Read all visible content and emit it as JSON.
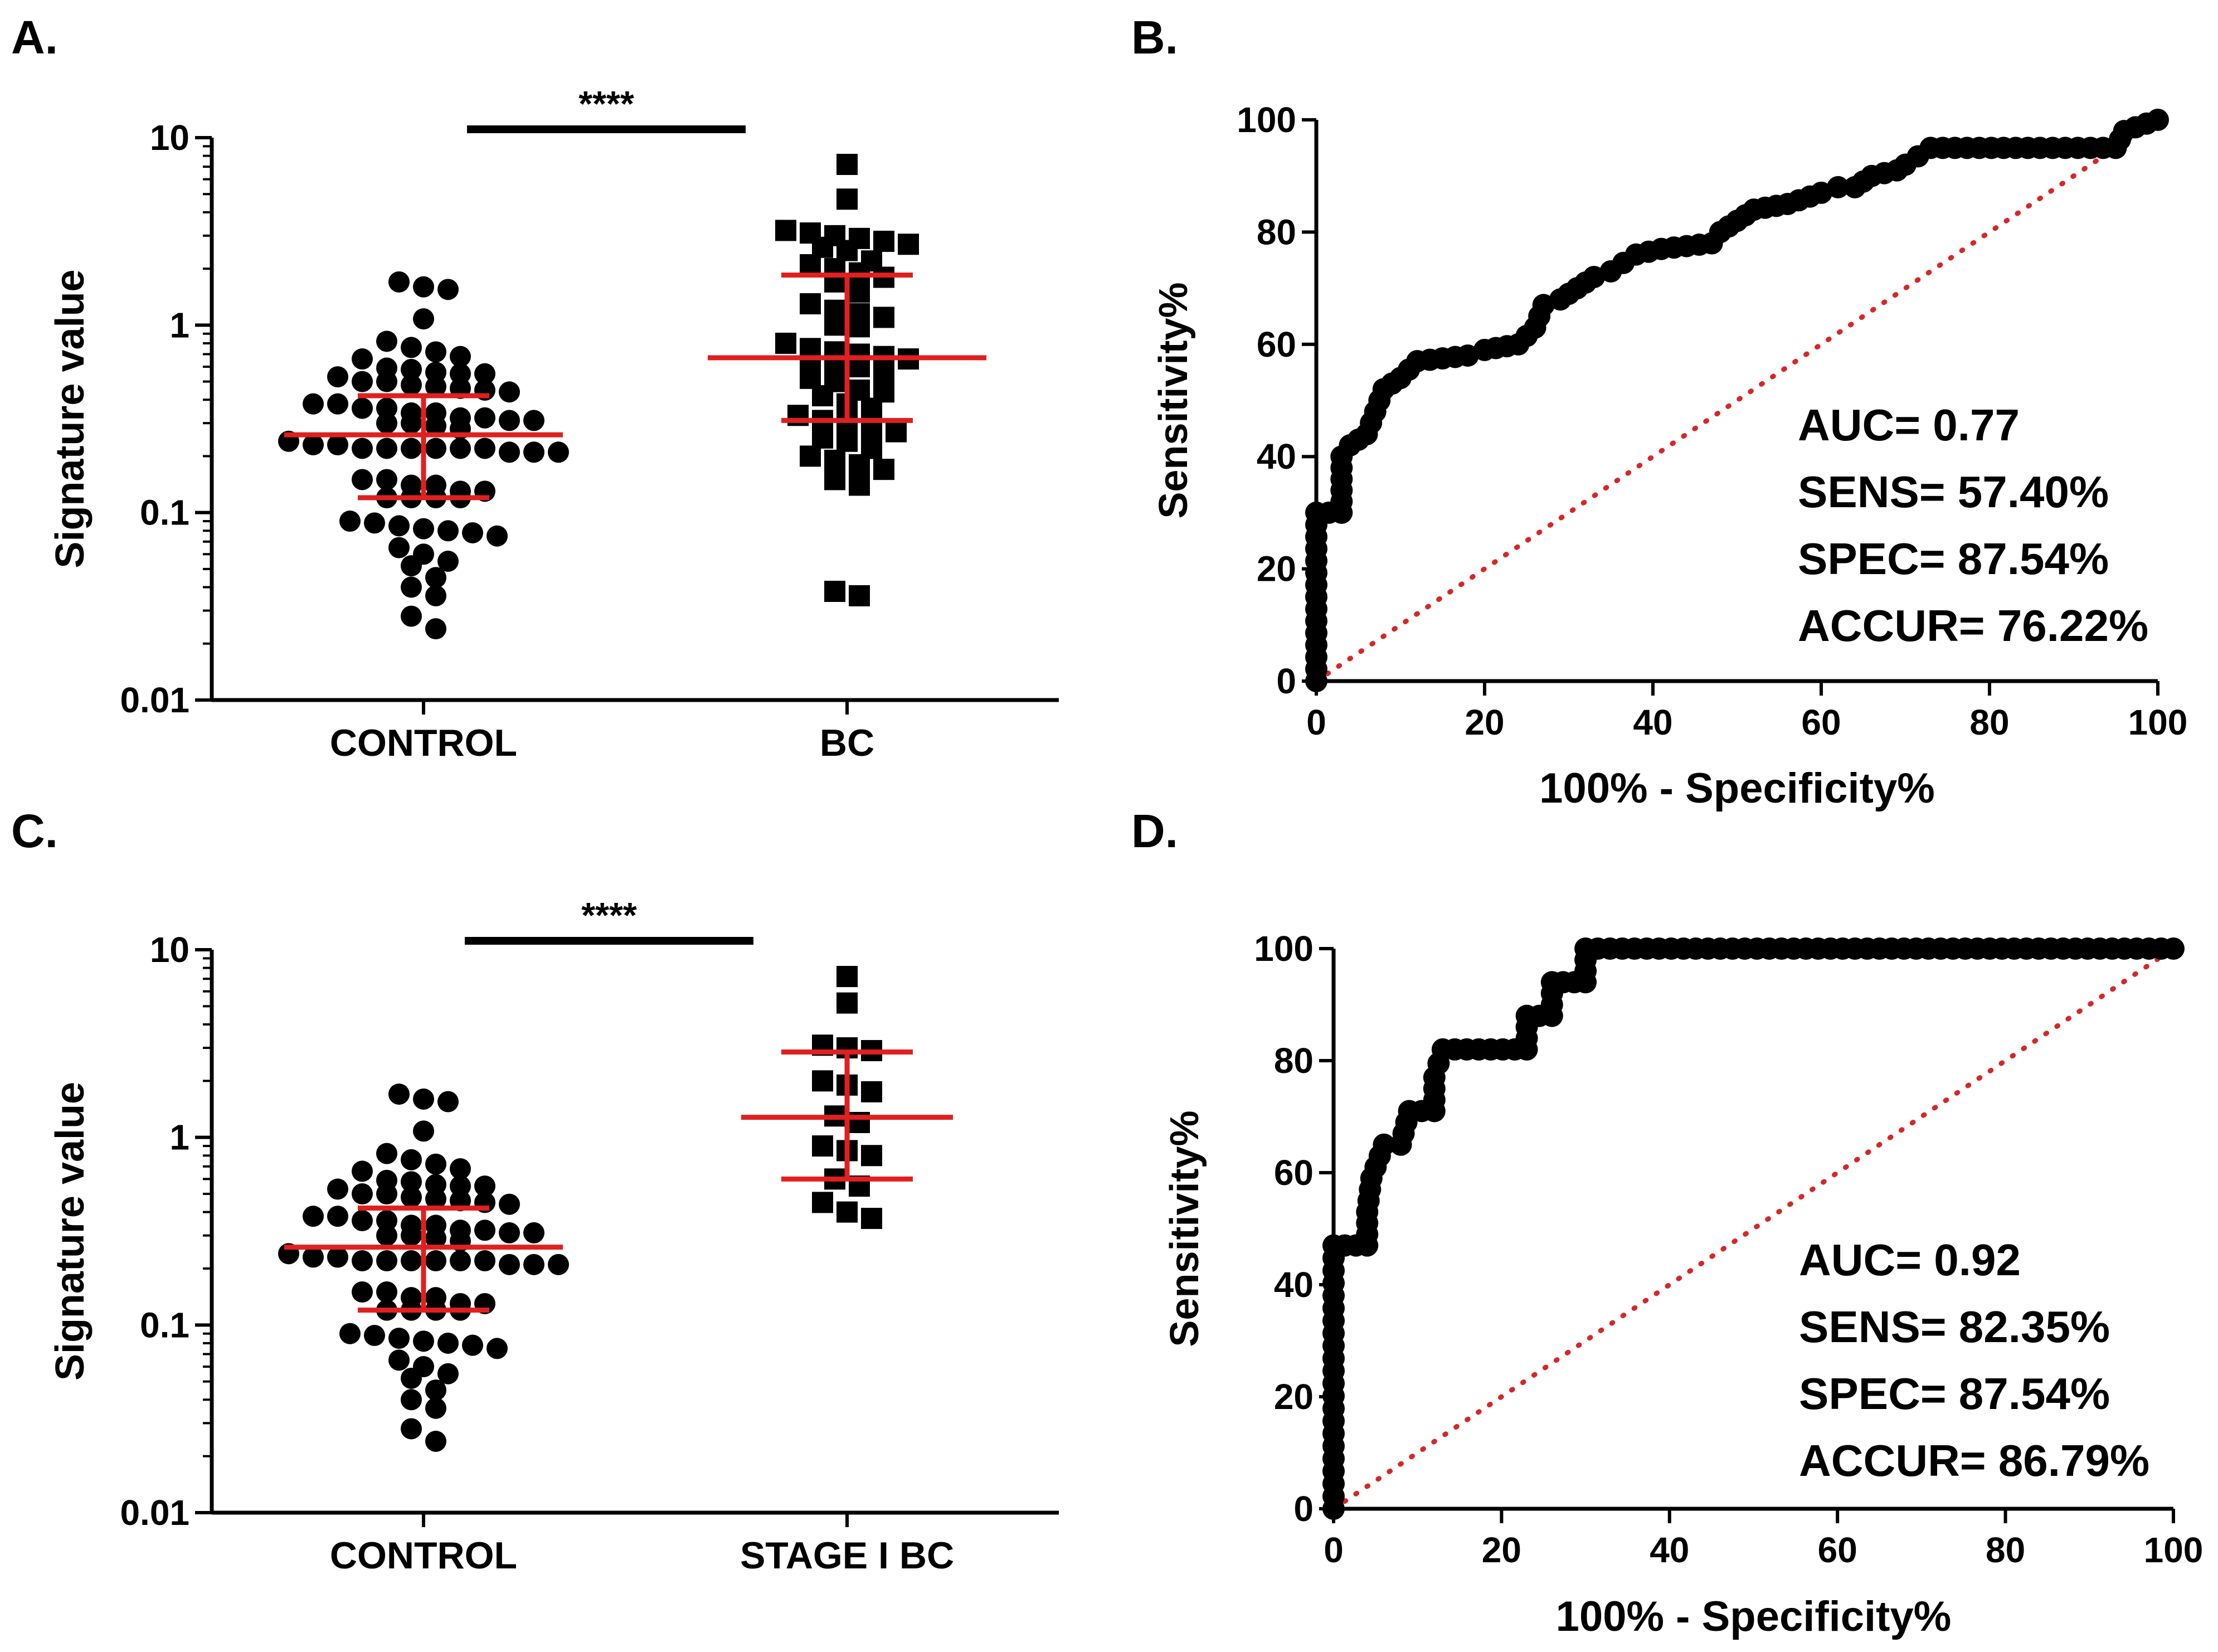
{
  "chart_data": [
    {
      "panel": "A.",
      "type": "scatter",
      "subtype": "dot-plot-log",
      "ylabel": "Signature value",
      "yscale": "log",
      "ylim": [
        0.01,
        10
      ],
      "yticks": [
        "0.01",
        "0.1",
        "1",
        "10"
      ],
      "categories": [
        "CONTROL",
        "BC"
      ],
      "significance": "****",
      "color_summary": "#e02020",
      "groups": [
        {
          "name": "CONTROL",
          "marker": "circle",
          "median": 0.26,
          "q1": 0.12,
          "q3": 0.42,
          "values": [
            1.7,
            1.6,
            1.08,
            1.55,
            0.82,
            0.72,
            0.68,
            0.66,
            0.76,
            0.58,
            0.55,
            0.5,
            0.47,
            0.45,
            0.44,
            0.46,
            0.48,
            0.5,
            0.53,
            0.56,
            0.59,
            0.55,
            0.38,
            0.36,
            0.34,
            0.32,
            0.31,
            0.3,
            0.29,
            0.28,
            0.3,
            0.31,
            0.32,
            0.34,
            0.36,
            0.38,
            0.24,
            0.23,
            0.22,
            0.22,
            0.21,
            0.21,
            0.21,
            0.22,
            0.22,
            0.23,
            0.22,
            0.22,
            0.15,
            0.14,
            0.13,
            0.12,
            0.12,
            0.12,
            0.12,
            0.13,
            0.14,
            0.15,
            0.09,
            0.085,
            0.08,
            0.075,
            0.078,
            0.082,
            0.088,
            0.06,
            0.055,
            0.065,
            0.052,
            0.045,
            0.036,
            0.04,
            0.028,
            0.024
          ]
        },
        {
          "name": "BC",
          "marker": "square",
          "median": 0.67,
          "q1": 0.31,
          "q3": 1.85,
          "values": [
            7.2,
            4.7,
            3.2,
            3.1,
            3.0,
            2.9,
            2.8,
            2.7,
            2.6,
            2.5,
            2.2,
            2.1,
            2.0,
            1.9,
            1.8,
            1.7,
            1.5,
            1.3,
            1.2,
            1.15,
            1.1,
            1.0,
            0.98,
            0.8,
            0.75,
            0.72,
            0.7,
            0.68,
            0.66,
            0.64,
            0.62,
            0.6,
            0.55,
            0.52,
            0.5,
            0.45,
            0.44,
            0.42,
            0.38,
            0.36,
            0.33,
            0.31,
            0.3,
            0.28,
            0.27,
            0.25,
            0.24,
            0.22,
            0.2,
            0.19,
            0.18,
            0.17,
            0.15,
            0.14,
            0.038,
            0.036
          ]
        }
      ]
    },
    {
      "panel": "B.",
      "type": "line",
      "subtype": "roc",
      "xlabel": "100% - Specificity%",
      "ylabel": "Sensitivity%",
      "xlim": [
        0,
        100
      ],
      "ylim": [
        0,
        100
      ],
      "xticks": [
        "0",
        "20",
        "40",
        "60",
        "80",
        "100"
      ],
      "yticks": [
        "0",
        "20",
        "40",
        "60",
        "80",
        "100"
      ],
      "color_diagonal": "#d62728",
      "stats": [
        "AUC= 0.77",
        "SENS= 57.40%",
        "SPEC= 87.54%",
        "ACCUR= 76.22%"
      ],
      "curve": [
        [
          0,
          0
        ],
        [
          0,
          30
        ],
        [
          3,
          30
        ],
        [
          3,
          40
        ],
        [
          4,
          42
        ],
        [
          6,
          44
        ],
        [
          7,
          48
        ],
        [
          8,
          52
        ],
        [
          10,
          54
        ],
        [
          12,
          57
        ],
        [
          18,
          58
        ],
        [
          20,
          59
        ],
        [
          24,
          60
        ],
        [
          26,
          63
        ],
        [
          27,
          67
        ],
        [
          29,
          68
        ],
        [
          31,
          70
        ],
        [
          33,
          72
        ],
        [
          35,
          73
        ],
        [
          38,
          76
        ],
        [
          41,
          77
        ],
        [
          47,
          78
        ],
        [
          48,
          80
        ],
        [
          50,
          82
        ],
        [
          52,
          84
        ],
        [
          56,
          85
        ],
        [
          60,
          87
        ],
        [
          62,
          88
        ],
        [
          64,
          88
        ],
        [
          66,
          90
        ],
        [
          69,
          91
        ],
        [
          70,
          92
        ],
        [
          73,
          95
        ],
        [
          86,
          95
        ],
        [
          95,
          95
        ],
        [
          96,
          98
        ],
        [
          100,
          100
        ]
      ]
    },
    {
      "panel": "C.",
      "type": "scatter",
      "subtype": "dot-plot-log",
      "ylabel": "Signature value",
      "yscale": "log",
      "ylim": [
        0.01,
        10
      ],
      "yticks": [
        "0.01",
        "0.1",
        "1",
        "10"
      ],
      "categories": [
        "CONTROL",
        "STAGE I BC"
      ],
      "significance": "****",
      "color_summary": "#e02020",
      "groups": [
        {
          "name": "CONTROL",
          "marker": "circle",
          "median": 0.26,
          "q1": 0.12,
          "q3": 0.42,
          "values": [
            1.7,
            1.6,
            1.08,
            1.55,
            0.82,
            0.72,
            0.68,
            0.66,
            0.76,
            0.58,
            0.55,
            0.5,
            0.47,
            0.45,
            0.44,
            0.46,
            0.48,
            0.5,
            0.53,
            0.56,
            0.59,
            0.55,
            0.38,
            0.36,
            0.34,
            0.32,
            0.31,
            0.3,
            0.29,
            0.28,
            0.3,
            0.31,
            0.32,
            0.34,
            0.36,
            0.38,
            0.24,
            0.23,
            0.22,
            0.22,
            0.21,
            0.21,
            0.21,
            0.22,
            0.22,
            0.23,
            0.22,
            0.22,
            0.15,
            0.14,
            0.13,
            0.12,
            0.12,
            0.12,
            0.12,
            0.13,
            0.14,
            0.15,
            0.09,
            0.085,
            0.08,
            0.075,
            0.078,
            0.082,
            0.088,
            0.06,
            0.055,
            0.065,
            0.052,
            0.045,
            0.036,
            0.04,
            0.028,
            0.024
          ]
        },
        {
          "name": "STAGE I BC",
          "marker": "square",
          "median": 1.28,
          "q1": 0.6,
          "q3": 2.85,
          "values": [
            7.2,
            5.2,
            3.1,
            3.0,
            2.9,
            2.0,
            1.9,
            1.75,
            1.3,
            1.2,
            0.9,
            0.85,
            0.8,
            0.6,
            0.55,
            0.45,
            0.4,
            0.37
          ]
        }
      ]
    },
    {
      "panel": "D.",
      "type": "line",
      "subtype": "roc",
      "xlabel": "100% - Specificity%",
      "ylabel": "Sensitivity%",
      "xlim": [
        0,
        100
      ],
      "ylim": [
        0,
        100
      ],
      "xticks": [
        "0",
        "20",
        "40",
        "60",
        "80",
        "100"
      ],
      "yticks": [
        "0",
        "20",
        "40",
        "60",
        "80",
        "100"
      ],
      "color_diagonal": "#d62728",
      "stats": [
        "AUC= 0.92",
        "SENS= 82.35%",
        "SPEC= 87.54%",
        "ACCUR= 86.79%"
      ],
      "curve": [
        [
          0,
          0
        ],
        [
          0,
          47
        ],
        [
          4,
          47
        ],
        [
          4,
          53
        ],
        [
          4.5,
          59
        ],
        [
          6,
          65
        ],
        [
          8,
          65
        ],
        [
          9,
          71
        ],
        [
          12,
          71
        ],
        [
          12,
          77
        ],
        [
          13,
          82
        ],
        [
          23,
          82
        ],
        [
          23,
          88
        ],
        [
          26,
          88
        ],
        [
          26,
          94
        ],
        [
          30,
          94
        ],
        [
          30,
          100
        ],
        [
          100,
          100
        ]
      ]
    }
  ]
}
